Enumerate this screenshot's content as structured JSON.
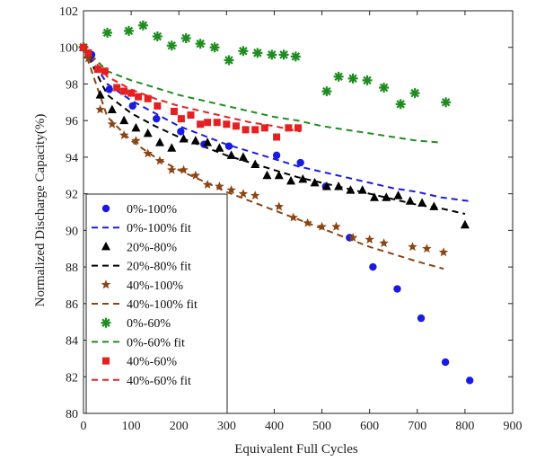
{
  "chart_data": {
    "type": "scatter",
    "xlabel": "Equivalent Full Cycles",
    "ylabel": "Normalized Discharge Capacity(%)",
    "xlim": [
      0,
      900
    ],
    "ylim": [
      80,
      102
    ],
    "xticks": [
      0,
      100,
      200,
      300,
      400,
      500,
      600,
      700,
      800,
      900
    ],
    "yticks": [
      80,
      82,
      84,
      86,
      88,
      90,
      92,
      94,
      96,
      98,
      100,
      102
    ],
    "grid": false,
    "legend_position": "bottom-left",
    "series": [
      {
        "name": "0%-100%",
        "marker": "circle",
        "color": "#1a1ae6",
        "points": [
          [
            0,
            100
          ],
          [
            17,
            99.6
          ],
          [
            54,
            97.7
          ],
          [
            103,
            96.8
          ],
          [
            153,
            96.1
          ],
          [
            204,
            95.4
          ],
          [
            253,
            94.7
          ],
          [
            305,
            94.6
          ],
          [
            405,
            94.1
          ],
          [
            455,
            93.7
          ],
          [
            508,
            92.4
          ],
          [
            558,
            89.6
          ],
          [
            607,
            88.0
          ],
          [
            658,
            86.8
          ],
          [
            708,
            85.2
          ],
          [
            759,
            82.8
          ],
          [
            810,
            81.8
          ]
        ]
      },
      {
        "name": "0%-100% fit",
        "line": "dashed",
        "color": "#1a1ae6",
        "points": [
          [
            0,
            100.0
          ],
          [
            50,
            98.0
          ],
          [
            100,
            97.1
          ],
          [
            150,
            96.4
          ],
          [
            200,
            95.7
          ],
          [
            250,
            95.2
          ],
          [
            300,
            94.7
          ],
          [
            350,
            94.3
          ],
          [
            400,
            93.9
          ],
          [
            450,
            93.5
          ],
          [
            500,
            93.2
          ],
          [
            550,
            92.9
          ],
          [
            600,
            92.6
          ],
          [
            650,
            92.3
          ],
          [
            700,
            92.1
          ],
          [
            750,
            91.8
          ],
          [
            810,
            91.6
          ]
        ]
      },
      {
        "name": "20%-80%",
        "marker": "triangle",
        "color": "#000000",
        "points": [
          [
            0,
            100
          ],
          [
            10,
            99.6
          ],
          [
            35,
            97.4
          ],
          [
            60,
            96.6
          ],
          [
            85,
            96.0
          ],
          [
            110,
            95.6
          ],
          [
            135,
            95.3
          ],
          [
            160,
            94.8
          ],
          [
            185,
            94.5
          ],
          [
            210,
            95.0
          ],
          [
            235,
            94.9
          ],
          [
            260,
            94.8
          ],
          [
            285,
            94.5
          ],
          [
            310,
            94.1
          ],
          [
            335,
            94.0
          ],
          [
            360,
            93.6
          ],
          [
            385,
            93.0
          ],
          [
            410,
            93.0
          ],
          [
            435,
            92.7
          ],
          [
            460,
            92.8
          ],
          [
            485,
            92.6
          ],
          [
            510,
            92.4
          ],
          [
            535,
            92.4
          ],
          [
            560,
            92.2
          ],
          [
            585,
            92.2
          ],
          [
            610,
            91.8
          ],
          [
            635,
            91.8
          ],
          [
            660,
            91.9
          ],
          [
            685,
            91.6
          ],
          [
            710,
            91.5
          ],
          [
            735,
            91.3
          ],
          [
            800,
            90.3
          ]
        ]
      },
      {
        "name": "20%-80% fit",
        "line": "dashed",
        "color": "#000000",
        "points": [
          [
            0,
            100.0
          ],
          [
            50,
            97.4
          ],
          [
            100,
            96.4
          ],
          [
            150,
            95.7
          ],
          [
            200,
            95.1
          ],
          [
            250,
            94.6
          ],
          [
            300,
            94.1
          ],
          [
            350,
            93.7
          ],
          [
            400,
            93.3
          ],
          [
            450,
            92.9
          ],
          [
            500,
            92.6
          ],
          [
            550,
            92.3
          ],
          [
            600,
            92.0
          ],
          [
            650,
            91.7
          ],
          [
            700,
            91.4
          ],
          [
            750,
            91.2
          ],
          [
            800,
            90.9
          ]
        ]
      },
      {
        "name": "40%-100%",
        "marker": "star",
        "color": "#8b4513",
        "points": [
          [
            0,
            100
          ],
          [
            10,
            99.4
          ],
          [
            35,
            96.6
          ],
          [
            60,
            95.8
          ],
          [
            85,
            95.2
          ],
          [
            110,
            94.9
          ],
          [
            135,
            94.2
          ],
          [
            160,
            93.8
          ],
          [
            185,
            93.3
          ],
          [
            210,
            93.3
          ],
          [
            235,
            93.0
          ],
          [
            260,
            92.5
          ],
          [
            285,
            92.4
          ],
          [
            310,
            92.2
          ],
          [
            335,
            92.0
          ],
          [
            360,
            91.9
          ],
          [
            410,
            91.3
          ],
          [
            440,
            90.7
          ],
          [
            470,
            90.4
          ],
          [
            500,
            90.2
          ],
          [
            530,
            90.2
          ],
          [
            565,
            89.6
          ],
          [
            600,
            89.5
          ],
          [
            630,
            89.3
          ],
          [
            690,
            89.1
          ],
          [
            720,
            89.0
          ],
          [
            755,
            88.8
          ]
        ]
      },
      {
        "name": "40%-100% fit",
        "line": "dashed",
        "color": "#8b4513",
        "points": [
          [
            0,
            100.0
          ],
          [
            50,
            96.2
          ],
          [
            100,
            94.9
          ],
          [
            150,
            94.0
          ],
          [
            200,
            93.3
          ],
          [
            250,
            92.7
          ],
          [
            300,
            92.1
          ],
          [
            350,
            91.6
          ],
          [
            400,
            91.1
          ],
          [
            450,
            90.6
          ],
          [
            500,
            90.1
          ],
          [
            550,
            89.6
          ],
          [
            600,
            89.1
          ],
          [
            650,
            88.7
          ],
          [
            700,
            88.3
          ],
          [
            755,
            87.9
          ]
        ]
      },
      {
        "name": "0%-60%",
        "marker": "asterisk",
        "color": "#1f8c1f",
        "points": [
          [
            0,
            100
          ],
          [
            50,
            100.8
          ],
          [
            95,
            100.9
          ],
          [
            125,
            101.2
          ],
          [
            155,
            100.6
          ],
          [
            185,
            100.1
          ],
          [
            215,
            100.5
          ],
          [
            245,
            100.2
          ],
          [
            275,
            100.0
          ],
          [
            305,
            99.3
          ],
          [
            335,
            99.8
          ],
          [
            365,
            99.7
          ],
          [
            395,
            99.6
          ],
          [
            420,
            99.6
          ],
          [
            445,
            99.5
          ],
          [
            510,
            97.6
          ],
          [
            535,
            98.4
          ],
          [
            565,
            98.3
          ],
          [
            595,
            98.2
          ],
          [
            630,
            97.8
          ],
          [
            665,
            96.9
          ],
          [
            695,
            97.5
          ],
          [
            760,
            97.0
          ]
        ]
      },
      {
        "name": "0%-60% fit",
        "line": "dashed",
        "color": "#1f8c1f",
        "points": [
          [
            0,
            100.0
          ],
          [
            50,
            98.7
          ],
          [
            100,
            98.2
          ],
          [
            150,
            97.8
          ],
          [
            200,
            97.4
          ],
          [
            250,
            97.1
          ],
          [
            300,
            96.8
          ],
          [
            350,
            96.5
          ],
          [
            400,
            96.2
          ],
          [
            450,
            96.0
          ],
          [
            500,
            95.7
          ],
          [
            550,
            95.5
          ],
          [
            600,
            95.3
          ],
          [
            650,
            95.1
          ],
          [
            700,
            94.9
          ],
          [
            750,
            94.8
          ]
        ]
      },
      {
        "name": "40%-60%",
        "marker": "square",
        "color": "#e62020",
        "points": [
          [
            0,
            100
          ],
          [
            10,
            99.7
          ],
          [
            30,
            98.8
          ],
          [
            45,
            98.7
          ],
          [
            70,
            97.8
          ],
          [
            85,
            97.6
          ],
          [
            100,
            97.5
          ],
          [
            115,
            97.3
          ],
          [
            135,
            97.2
          ],
          [
            155,
            96.8
          ],
          [
            190,
            96.5
          ],
          [
            205,
            96.1
          ],
          [
            225,
            96.3
          ],
          [
            245,
            95.8
          ],
          [
            260,
            95.9
          ],
          [
            280,
            95.9
          ],
          [
            300,
            95.8
          ],
          [
            320,
            95.7
          ],
          [
            340,
            95.5
          ],
          [
            360,
            95.5
          ],
          [
            380,
            95.6
          ],
          [
            405,
            95.1
          ],
          [
            430,
            95.6
          ],
          [
            450,
            95.6
          ]
        ]
      },
      {
        "name": "40%-60% fit",
        "line": "dashed",
        "color": "#e62020",
        "points": [
          [
            0,
            100.0
          ],
          [
            50,
            98.4
          ],
          [
            100,
            97.7
          ],
          [
            150,
            97.2
          ],
          [
            200,
            96.8
          ],
          [
            250,
            96.5
          ],
          [
            300,
            96.2
          ],
          [
            350,
            95.9
          ],
          [
            400,
            95.7
          ],
          [
            455,
            95.4
          ]
        ]
      }
    ]
  }
}
